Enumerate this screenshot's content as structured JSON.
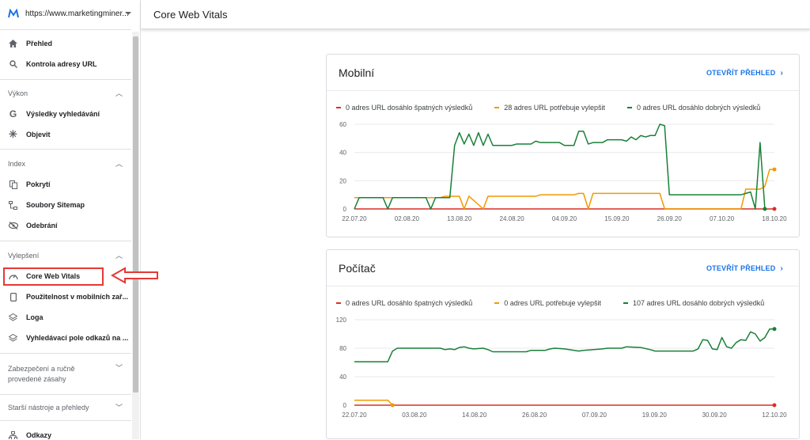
{
  "property": {
    "url": "https://www.marketingminer...",
    "logo_icon": "marketing-miner-logo"
  },
  "header": {
    "title": "Core Web Vitals"
  },
  "sidebar": {
    "top": [
      {
        "label": "Přehled",
        "icon": "home-icon"
      },
      {
        "label": "Kontrola adresy URL",
        "icon": "search-icon"
      }
    ],
    "vykon": {
      "title": "Výkon",
      "items": [
        {
          "label": "Výsledky vyhledávání",
          "icon": "google-icon"
        },
        {
          "label": "Objevit",
          "icon": "asterisk-icon"
        }
      ]
    },
    "index": {
      "title": "Index",
      "items": [
        {
          "label": "Pokrytí",
          "icon": "copy-icon"
        },
        {
          "label": "Soubory Sitemap",
          "icon": "sitemap-icon"
        },
        {
          "label": "Odebrání",
          "icon": "eye-off-icon"
        }
      ]
    },
    "vylepseni": {
      "title": "Vylepšení",
      "items": [
        {
          "label": "Core Web Vitals",
          "icon": "gauge-icon"
        },
        {
          "label": "Použitelnost v mobilních zař...",
          "icon": "phone-icon"
        },
        {
          "label": "Loga",
          "icon": "layers-icon"
        },
        {
          "label": "Vyhledávací pole odkazů na ...",
          "icon": "layers-icon"
        }
      ]
    },
    "zabezpeceni": {
      "title_1": "Zabezpečení a ručně",
      "title_2": "provedené zásahy"
    },
    "starsi": {
      "title": "Starší nástroje a přehledy"
    },
    "bottom": {
      "label": "Odkazy",
      "icon": "links-icon"
    }
  },
  "colors": {
    "poor": "#d93025",
    "ni": "#f29900",
    "good": "#188038",
    "accent": "#1a73e8"
  },
  "cards": [
    {
      "title": "Mobilní",
      "link": "OTEVŘÍT PŘEHLED",
      "legend": [
        "0 adres URL dosáhlo špatných výsledků",
        "28 adres URL potřebuje vylepšit",
        "0 adres URL dosáhlo dobrých výsledků"
      ]
    },
    {
      "title": "Počítač",
      "link": "OTEVŘÍT PŘEHLED",
      "legend": [
        "0 adres URL dosáhlo špatných výsledků",
        "0 adres URL potřebuje vylepšit",
        "107 adres URL dosáhlo dobrých výsledků"
      ]
    }
  ],
  "chart_data": [
    {
      "type": "line",
      "title": "Mobilní",
      "ylim": [
        0,
        60
      ],
      "yticks": [
        0,
        20,
        40,
        60
      ],
      "xticks": [
        "22.07.20",
        "02.08.20",
        "13.08.20",
        "24.08.20",
        "04.09.20",
        "15.09.20",
        "26.09.20",
        "07.10.20",
        "18.10.20"
      ],
      "x_days": 89,
      "series": [
        {
          "name": "Špatné",
          "color": "#d93025",
          "values": [
            [
              0,
              0
            ],
            [
              88,
              0
            ]
          ]
        },
        {
          "name": "Potřebuje vylepšit",
          "color": "#f29900",
          "values": [
            [
              0,
              8
            ],
            [
              18,
              8
            ],
            [
              19,
              9
            ],
            [
              22,
              9
            ],
            [
              23,
              0
            ],
            [
              24,
              9
            ],
            [
              27,
              0
            ],
            [
              28,
              9
            ],
            [
              38,
              9
            ],
            [
              39,
              10
            ],
            [
              46,
              10
            ],
            [
              47,
              11
            ],
            [
              48,
              11
            ],
            [
              49,
              0
            ],
            [
              50,
              11
            ],
            [
              64,
              11
            ],
            [
              65,
              0
            ],
            [
              81,
              0
            ],
            [
              82,
              14
            ],
            [
              85,
              14
            ],
            [
              86,
              16
            ],
            [
              87,
              28
            ],
            [
              88,
              28
            ]
          ]
        },
        {
          "name": "Dobré",
          "color": "#188038",
          "values": [
            [
              0,
              0
            ],
            [
              1,
              8
            ],
            [
              6,
              8
            ],
            [
              7,
              0
            ],
            [
              8,
              8
            ],
            [
              15,
              8
            ],
            [
              16,
              0
            ],
            [
              17,
              8
            ],
            [
              20,
              8
            ],
            [
              21,
              45
            ],
            [
              22,
              54
            ],
            [
              23,
              46
            ],
            [
              24,
              53
            ],
            [
              25,
              45
            ],
            [
              26,
              54
            ],
            [
              27,
              45
            ],
            [
              28,
              53
            ],
            [
              29,
              45
            ],
            [
              33,
              45
            ],
            [
              34,
              46
            ],
            [
              37,
              46
            ],
            [
              38,
              48
            ],
            [
              39,
              47
            ],
            [
              43,
              47
            ],
            [
              44,
              45
            ],
            [
              46,
              45
            ],
            [
              47,
              55
            ],
            [
              48,
              55
            ],
            [
              49,
              46
            ],
            [
              50,
              47
            ],
            [
              52,
              47
            ],
            [
              53,
              49
            ],
            [
              56,
              49
            ],
            [
              57,
              48
            ],
            [
              58,
              51
            ],
            [
              59,
              49
            ],
            [
              60,
              52
            ],
            [
              61,
              51
            ],
            [
              62,
              52
            ],
            [
              63,
              52
            ],
            [
              64,
              60
            ],
            [
              65,
              59
            ],
            [
              66,
              10
            ],
            [
              81,
              10
            ],
            [
              82,
              11
            ],
            [
              83,
              12
            ],
            [
              84,
              0
            ],
            [
              85,
              47
            ],
            [
              86,
              0
            ]
          ]
        }
      ]
    },
    {
      "type": "line",
      "title": "Počítač",
      "ylim": [
        0,
        120
      ],
      "yticks": [
        0,
        40,
        80,
        120
      ],
      "xticks": [
        "22.07.20",
        "03.08.20",
        "14.08.20",
        "26.08.20",
        "07.09.20",
        "19.09.20",
        "30.09.20",
        "12.10.20"
      ],
      "x_days": 89,
      "series": [
        {
          "name": "Špatné",
          "color": "#d93025",
          "values": [
            [
              0,
              0
            ],
            [
              88,
              0
            ]
          ]
        },
        {
          "name": "Potřebuje vylepšit",
          "color": "#f29900",
          "values": [
            [
              0,
              7
            ],
            [
              7,
              7
            ],
            [
              8,
              0
            ]
          ]
        },
        {
          "name": "Dobré",
          "color": "#188038",
          "values": [
            [
              0,
              61
            ],
            [
              7,
              61
            ],
            [
              8,
              76
            ],
            [
              9,
              80
            ],
            [
              18,
              80
            ],
            [
              19,
              78
            ],
            [
              20,
              79
            ],
            [
              21,
              78
            ],
            [
              22,
              81
            ],
            [
              23,
              82
            ],
            [
              24,
              80
            ],
            [
              25,
              79
            ],
            [
              27,
              80
            ],
            [
              28,
              78
            ],
            [
              29,
              75
            ],
            [
              36,
              75
            ],
            [
              37,
              77
            ],
            [
              40,
              77
            ],
            [
              41,
              79
            ],
            [
              42,
              80
            ],
            [
              44,
              79
            ],
            [
              45,
              78
            ],
            [
              47,
              76
            ],
            [
              48,
              77
            ],
            [
              52,
              79
            ],
            [
              53,
              80
            ],
            [
              56,
              80
            ],
            [
              57,
              82
            ],
            [
              60,
              81
            ],
            [
              62,
              78
            ],
            [
              63,
              76
            ],
            [
              71,
              76
            ],
            [
              72,
              79
            ],
            [
              73,
              92
            ],
            [
              74,
              91
            ],
            [
              75,
              79
            ],
            [
              76,
              78
            ],
            [
              77,
              95
            ],
            [
              78,
              82
            ],
            [
              79,
              80
            ],
            [
              80,
              88
            ],
            [
              81,
              92
            ],
            [
              82,
              91
            ],
            [
              83,
              103
            ],
            [
              84,
              100
            ],
            [
              85,
              90
            ],
            [
              86,
              95
            ],
            [
              87,
              107
            ],
            [
              88,
              107
            ]
          ]
        }
      ]
    }
  ]
}
